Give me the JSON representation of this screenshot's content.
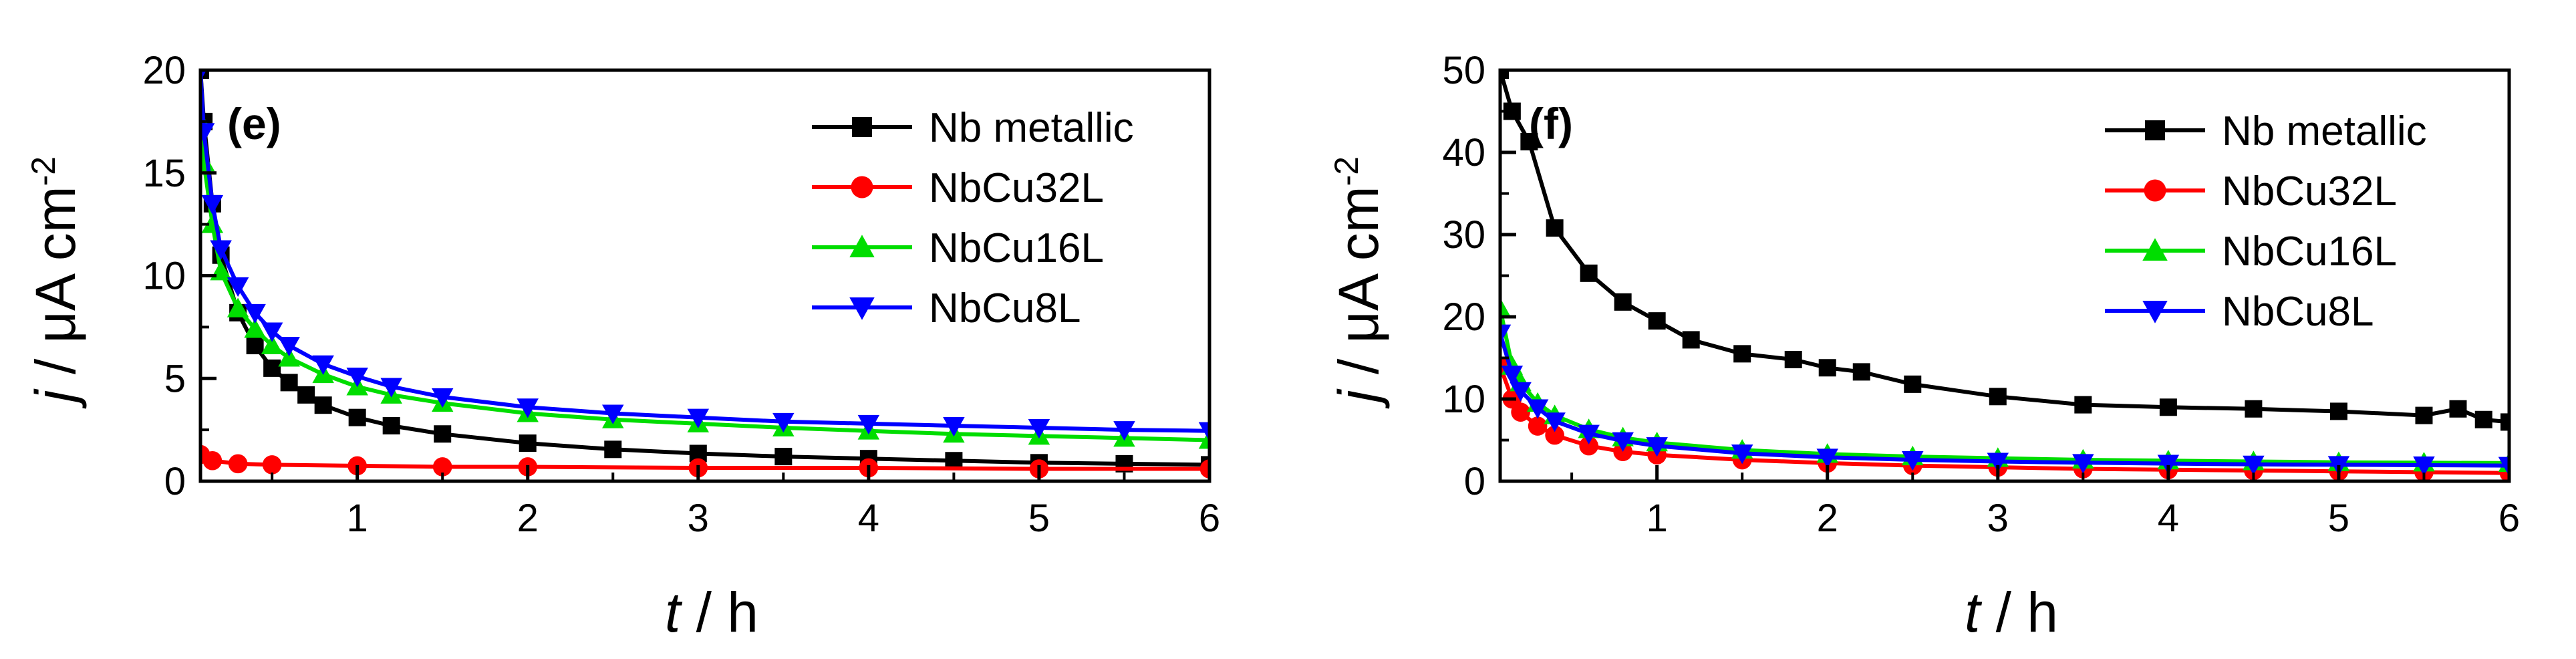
{
  "chart_data": [
    {
      "type": "line",
      "panel_label": "(e)",
      "xlabel_var": "t",
      "xlabel_unit": " / h",
      "ylabel_var": "j",
      "ylabel_unit": " / μA cm",
      "ylabel_exp": "-2",
      "xlim": [
        0.08,
        6
      ],
      "ylim": [
        0,
        20
      ],
      "xticks": [
        1,
        2,
        3,
        4,
        5,
        6
      ],
      "yticks": [
        0,
        5,
        10,
        15,
        20
      ],
      "legend_position": "top-right",
      "series": [
        {
          "name": "Nb metallic",
          "color": "#000000",
          "marker": "square",
          "x": [
            0.08,
            0.1,
            0.15,
            0.2,
            0.3,
            0.4,
            0.5,
            0.6,
            0.7,
            0.8,
            1,
            1.2,
            1.5,
            2,
            2.5,
            3,
            3.5,
            4,
            4.5,
            5,
            5.5,
            6
          ],
          "y": [
            20,
            17.5,
            13.5,
            11,
            8.2,
            6.6,
            5.5,
            4.8,
            4.2,
            3.7,
            3.1,
            2.7,
            2.3,
            1.85,
            1.55,
            1.35,
            1.2,
            1.1,
            1.0,
            0.9,
            0.85,
            0.8
          ]
        },
        {
          "name": "NbCu32L",
          "color": "#ff0000",
          "marker": "circle",
          "x": [
            0.08,
            0.15,
            0.3,
            0.5,
            1,
            1.5,
            2,
            3,
            4,
            5,
            6
          ],
          "y": [
            1.3,
            1.0,
            0.85,
            0.8,
            0.75,
            0.7,
            0.7,
            0.65,
            0.65,
            0.6,
            0.6
          ]
        },
        {
          "name": "NbCu16L",
          "color": "#00dd00",
          "marker": "triangle-up",
          "x": [
            0.08,
            0.1,
            0.15,
            0.2,
            0.3,
            0.4,
            0.5,
            0.6,
            0.8,
            1,
            1.2,
            1.5,
            2,
            2.5,
            3,
            3.5,
            4,
            4.5,
            5,
            5.5,
            6
          ],
          "y": [
            17.5,
            15.5,
            12.5,
            10.2,
            8.4,
            7.4,
            6.6,
            6.0,
            5.2,
            4.6,
            4.2,
            3.8,
            3.3,
            3.0,
            2.8,
            2.6,
            2.45,
            2.3,
            2.2,
            2.1,
            2.0
          ]
        },
        {
          "name": "NbCu8L",
          "color": "#0000ff",
          "marker": "triangle-down",
          "x": [
            0.08,
            0.1,
            0.15,
            0.2,
            0.3,
            0.4,
            0.5,
            0.6,
            0.8,
            1,
            1.2,
            1.5,
            2,
            2.5,
            3,
            3.5,
            4,
            4.5,
            5,
            5.5,
            6
          ],
          "y": [
            20,
            17,
            13.5,
            11.3,
            9.5,
            8.2,
            7.3,
            6.6,
            5.7,
            5.1,
            4.6,
            4.1,
            3.6,
            3.3,
            3.1,
            2.9,
            2.8,
            2.7,
            2.6,
            2.5,
            2.45
          ]
        }
      ]
    },
    {
      "type": "line",
      "panel_label": "(f)",
      "xlabel_var": "t",
      "xlabel_unit": " / h",
      "ylabel_var": "j",
      "ylabel_unit": " / μA cm",
      "ylabel_exp": "-2",
      "xlim": [
        0.08,
        6
      ],
      "ylim": [
        0,
        50
      ],
      "xticks": [
        1,
        2,
        3,
        4,
        5,
        6
      ],
      "yticks": [
        0,
        10,
        20,
        30,
        40,
        50
      ],
      "legend_position": "top-right",
      "series": [
        {
          "name": "Nb metallic",
          "color": "#000000",
          "marker": "square",
          "x": [
            0.08,
            0.15,
            0.25,
            0.4,
            0.6,
            0.8,
            1,
            1.2,
            1.5,
            1.8,
            2,
            2.2,
            2.5,
            3,
            3.5,
            4,
            4.5,
            5,
            5.5,
            5.7,
            5.85,
            6
          ],
          "y": [
            50,
            45,
            41.3,
            30.8,
            25.3,
            21.8,
            19.5,
            17.2,
            15.5,
            14.8,
            13.8,
            13.3,
            11.8,
            10.3,
            9.3,
            9.0,
            8.8,
            8.5,
            8.0,
            8.8,
            7.5,
            7.2
          ]
        },
        {
          "name": "NbCu32L",
          "color": "#ff0000",
          "marker": "circle",
          "x": [
            0.08,
            0.15,
            0.2,
            0.3,
            0.4,
            0.6,
            0.8,
            1,
            1.5,
            2,
            2.5,
            3,
            3.5,
            4,
            4.5,
            5,
            5.5,
            6
          ],
          "y": [
            14,
            10,
            8.4,
            6.7,
            5.6,
            4.3,
            3.6,
            3.2,
            2.6,
            2.2,
            1.9,
            1.7,
            1.5,
            1.4,
            1.3,
            1.2,
            1.1,
            1.0
          ]
        },
        {
          "name": "NbCu16L",
          "color": "#00dd00",
          "marker": "triangle-up",
          "x": [
            0.08,
            0.15,
            0.2,
            0.3,
            0.4,
            0.6,
            0.8,
            1,
            1.5,
            2,
            2.5,
            3,
            3.5,
            4,
            4.5,
            5,
            5.5,
            6
          ],
          "y": [
            21,
            14,
            12,
            9.5,
            8.0,
            6.3,
            5.3,
            4.7,
            3.8,
            3.3,
            3.0,
            2.8,
            2.6,
            2.5,
            2.4,
            2.3,
            2.25,
            2.2
          ]
        },
        {
          "name": "NbCu8L",
          "color": "#0000ff",
          "marker": "triangle-down",
          "x": [
            0.08,
            0.15,
            0.2,
            0.3,
            0.4,
            0.6,
            0.8,
            1,
            1.5,
            2,
            2.5,
            3,
            3.5,
            4,
            4.5,
            5,
            5.5,
            6
          ],
          "y": [
            18,
            13,
            11,
            8.9,
            7.3,
            5.8,
            4.9,
            4.3,
            3.4,
            2.9,
            2.6,
            2.4,
            2.25,
            2.15,
            2.05,
            2.0,
            1.95,
            1.9
          ]
        }
      ]
    }
  ]
}
